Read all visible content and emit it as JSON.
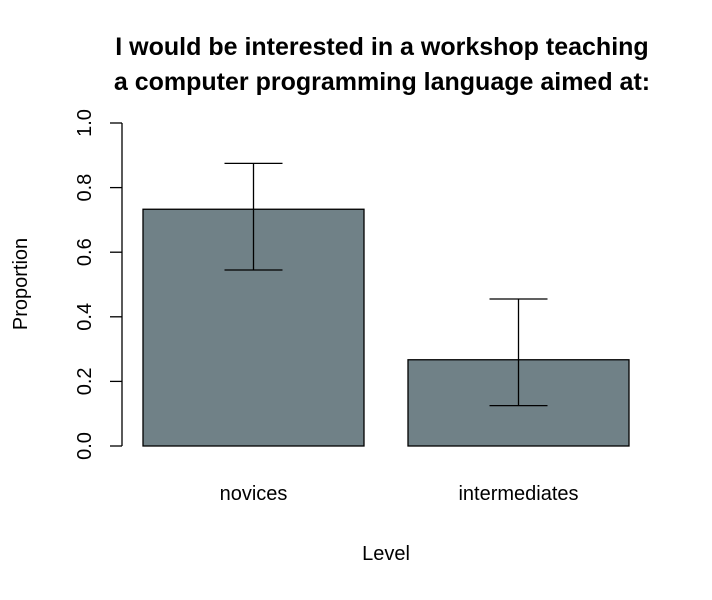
{
  "chart_data": {
    "type": "bar",
    "title": [
      "I would be interested in a workshop teaching",
      "a computer programming language aimed at:"
    ],
    "xlabel": "Level",
    "ylabel": "Proportion",
    "categories": [
      "novices",
      "intermediates"
    ],
    "values": [
      0.733,
      0.267
    ],
    "error_low": [
      0.545,
      0.125
    ],
    "error_high": [
      0.875,
      0.455
    ],
    "ylim": [
      0,
      1
    ],
    "yticks": [
      "0.0",
      "0.2",
      "0.4",
      "0.6",
      "0.8",
      "1.0"
    ],
    "bar_color": "#708187",
    "grid": false,
    "legend": "none"
  }
}
